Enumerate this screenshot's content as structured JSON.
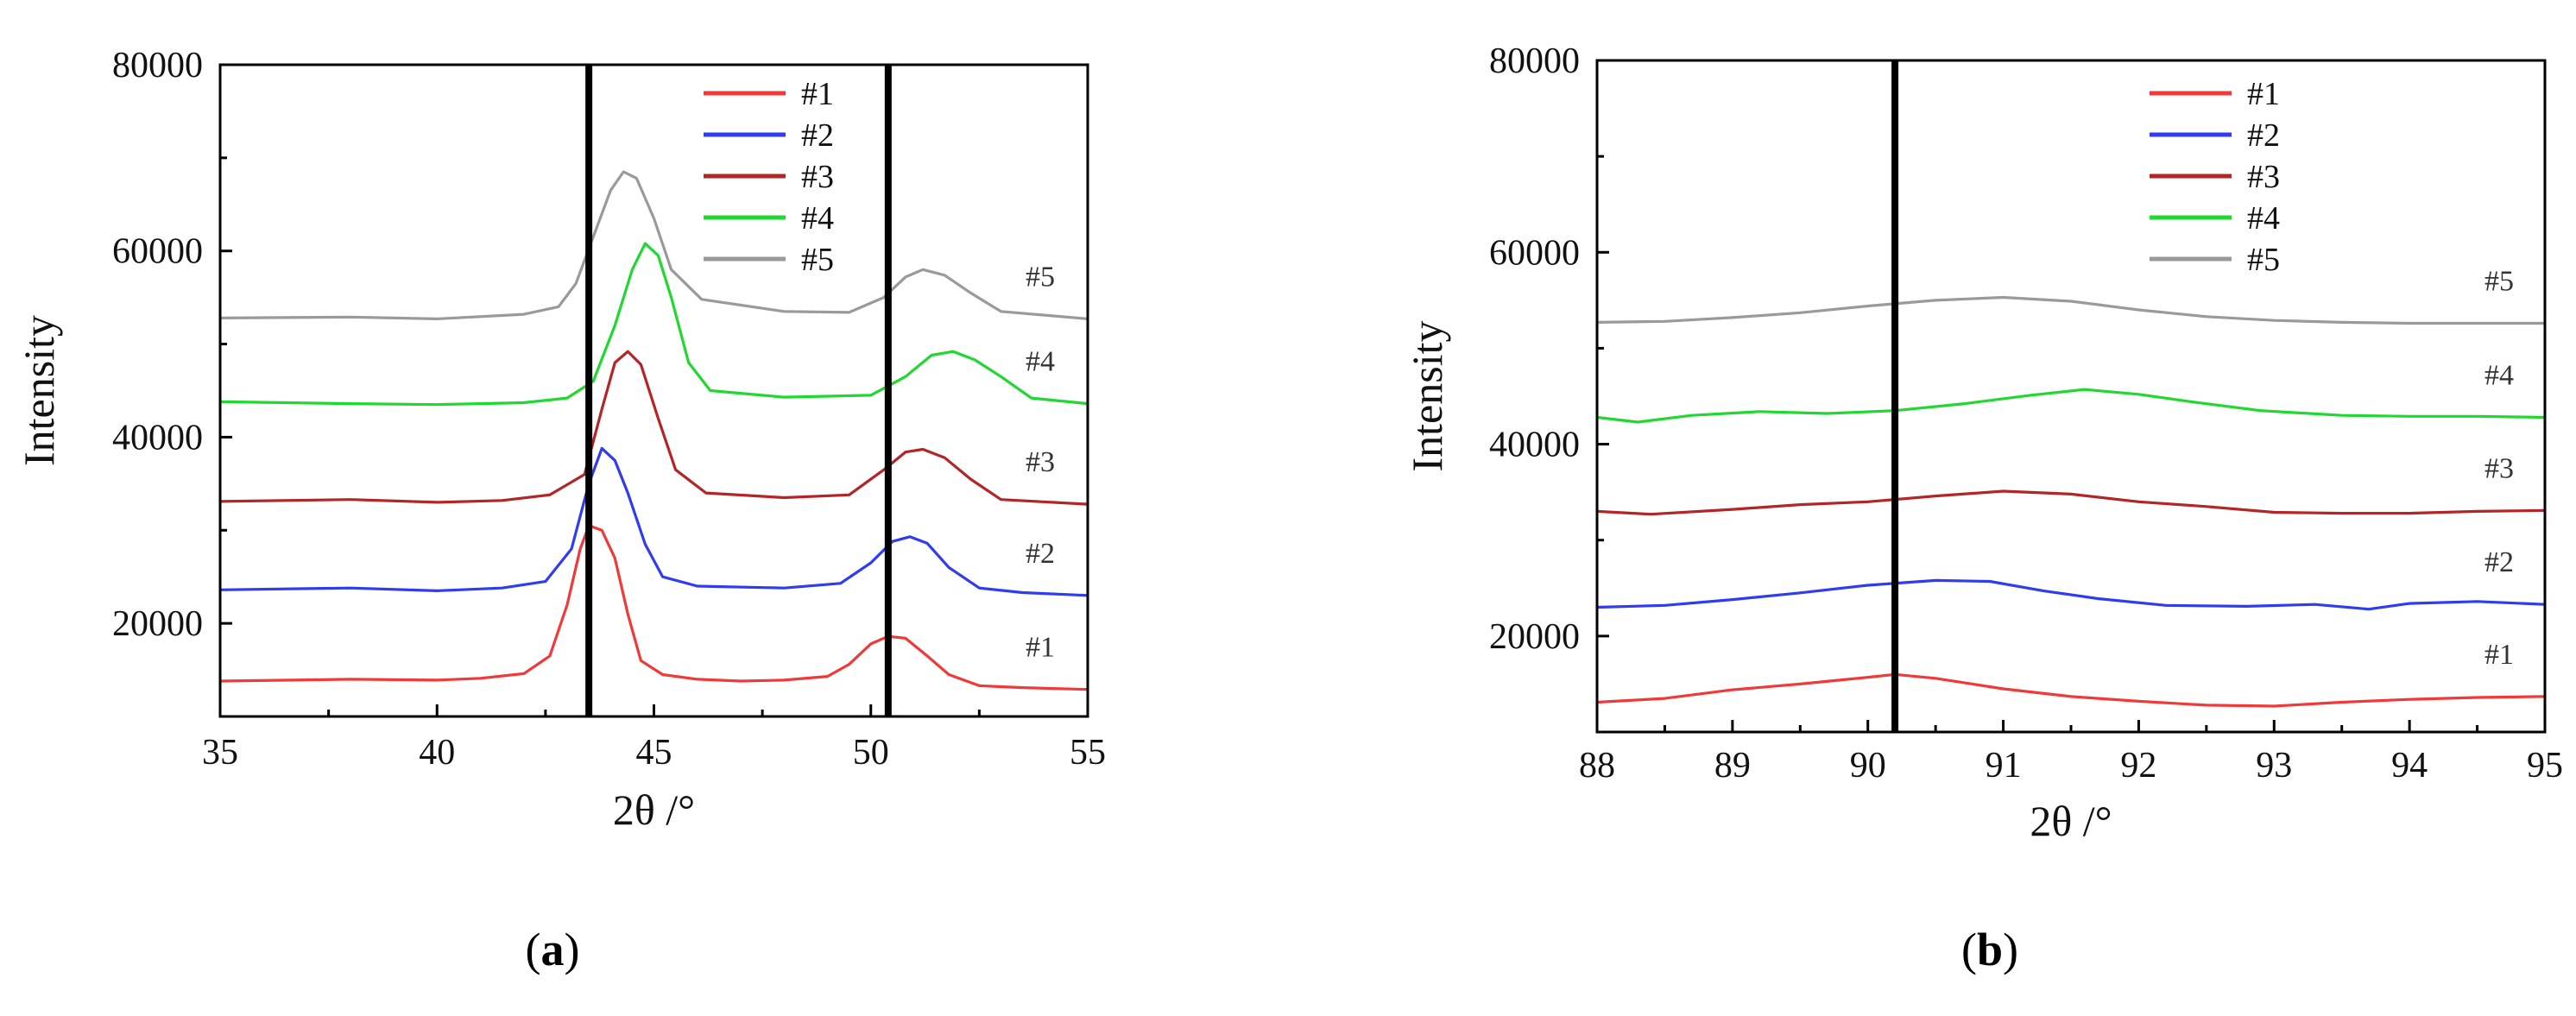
{
  "chart_data": [
    {
      "type": "line",
      "caption_letter": "a",
      "xlabel": "2θ /°",
      "ylabel": "Intensity",
      "xlim": [
        35,
        55
      ],
      "ylim": [
        10000,
        80000
      ],
      "xticks": [
        35,
        40,
        45,
        50,
        55
      ],
      "yticks": [
        20000,
        40000,
        60000,
        80000
      ],
      "ref_lines_x": [
        43.5,
        50.4
      ],
      "legend_position": "top-right",
      "series": [
        {
          "name": "#1",
          "color": "#f03a3a",
          "end_label": "#1",
          "points": [
            [
              35,
              13800
            ],
            [
              38,
              14000
            ],
            [
              40,
              13900
            ],
            [
              41,
              14100
            ],
            [
              42,
              14600
            ],
            [
              42.6,
              16500
            ],
            [
              43.0,
              22000
            ],
            [
              43.3,
              28000
            ],
            [
              43.5,
              30500
            ],
            [
              43.8,
              30000
            ],
            [
              44.1,
              27000
            ],
            [
              44.4,
              21000
            ],
            [
              44.7,
              16000
            ],
            [
              45.2,
              14500
            ],
            [
              46,
              14000
            ],
            [
              47,
              13800
            ],
            [
              48,
              13900
            ],
            [
              49,
              14300
            ],
            [
              49.5,
              15600
            ],
            [
              50.0,
              17800
            ],
            [
              50.4,
              18600
            ],
            [
              50.8,
              18400
            ],
            [
              51.3,
              16500
            ],
            [
              51.8,
              14500
            ],
            [
              52.5,
              13300
            ],
            [
              53.5,
              13100
            ],
            [
              55,
              12900
            ]
          ]
        },
        {
          "name": "#2",
          "color": "#2f3cf0",
          "end_label": "#2",
          "points": [
            [
              35,
              23600
            ],
            [
              38,
              23800
            ],
            [
              40,
              23500
            ],
            [
              41.5,
              23800
            ],
            [
              42.5,
              24500
            ],
            [
              43.1,
              28000
            ],
            [
              43.5,
              35000
            ],
            [
              43.8,
              38800
            ],
            [
              44.1,
              37500
            ],
            [
              44.4,
              34000
            ],
            [
              44.8,
              28500
            ],
            [
              45.2,
              25000
            ],
            [
              46,
              24000
            ],
            [
              48,
              23800
            ],
            [
              49.3,
              24300
            ],
            [
              50.0,
              26500
            ],
            [
              50.5,
              28800
            ],
            [
              50.9,
              29300
            ],
            [
              51.3,
              28600
            ],
            [
              51.8,
              26000
            ],
            [
              52.5,
              23800
            ],
            [
              53.5,
              23300
            ],
            [
              55,
              23000
            ]
          ]
        },
        {
          "name": "#3",
          "color": "#b32626",
          "end_label": "#3",
          "points": [
            [
              35,
              33100
            ],
            [
              38,
              33300
            ],
            [
              40,
              33000
            ],
            [
              41.5,
              33200
            ],
            [
              42.6,
              33800
            ],
            [
              43.4,
              36000
            ],
            [
              43.8,
              43000
            ],
            [
              44.1,
              48000
            ],
            [
              44.4,
              49200
            ],
            [
              44.7,
              47800
            ],
            [
              45.1,
              42000
            ],
            [
              45.5,
              36500
            ],
            [
              46.2,
              34000
            ],
            [
              48,
              33500
            ],
            [
              49.5,
              33800
            ],
            [
              50.3,
              36500
            ],
            [
              50.8,
              38400
            ],
            [
              51.2,
              38700
            ],
            [
              51.7,
              37800
            ],
            [
              52.3,
              35500
            ],
            [
              53,
              33300
            ],
            [
              55,
              32800
            ]
          ]
        },
        {
          "name": "#4",
          "color": "#20d830",
          "end_label": "#4",
          "points": [
            [
              35,
              43800
            ],
            [
              38,
              43600
            ],
            [
              40,
              43500
            ],
            [
              42,
              43700
            ],
            [
              43,
              44200
            ],
            [
              43.6,
              46000
            ],
            [
              44.1,
              52000
            ],
            [
              44.5,
              58000
            ],
            [
              44.8,
              60800
            ],
            [
              45.1,
              59500
            ],
            [
              45.4,
              55000
            ],
            [
              45.8,
              48000
            ],
            [
              46.3,
              45000
            ],
            [
              48,
              44300
            ],
            [
              50,
              44500
            ],
            [
              50.8,
              46500
            ],
            [
              51.4,
              48800
            ],
            [
              51.9,
              49200
            ],
            [
              52.4,
              48300
            ],
            [
              53,
              46500
            ],
            [
              53.7,
              44200
            ],
            [
              55,
              43600
            ]
          ]
        },
        {
          "name": "#5",
          "color": "#9a9a9a",
          "end_label": "#5",
          "points": [
            [
              35,
              52800
            ],
            [
              38,
              52900
            ],
            [
              40,
              52700
            ],
            [
              42,
              53200
            ],
            [
              42.8,
              54000
            ],
            [
              43.2,
              56500
            ],
            [
              43.6,
              61500
            ],
            [
              44.0,
              66500
            ],
            [
              44.3,
              68500
            ],
            [
              44.6,
              67800
            ],
            [
              45.0,
              63500
            ],
            [
              45.4,
              58000
            ],
            [
              46.1,
              54800
            ],
            [
              48,
              53500
            ],
            [
              49.5,
              53400
            ],
            [
              50.3,
              55000
            ],
            [
              50.8,
              57200
            ],
            [
              51.2,
              58000
            ],
            [
              51.7,
              57400
            ],
            [
              52.3,
              55500
            ],
            [
              53.0,
              53500
            ],
            [
              55,
              52700
            ]
          ]
        }
      ]
    },
    {
      "type": "line",
      "caption_letter": "b",
      "xlabel": "2θ /°",
      "ylabel": "Intensity",
      "xlim": [
        88,
        95
      ],
      "ylim": [
        10000,
        80000
      ],
      "xticks": [
        88,
        89,
        90,
        91,
        92,
        93,
        94,
        95
      ],
      "yticks": [
        20000,
        40000,
        60000,
        80000
      ],
      "ref_lines_x": [
        90.2
      ],
      "legend_position": "top-right",
      "series": [
        {
          "name": "#1",
          "color": "#f03a3a",
          "end_label": "#1",
          "points": [
            [
              88,
              13100
            ],
            [
              88.5,
              13500
            ],
            [
              89,
              14400
            ],
            [
              89.5,
              15000
            ],
            [
              90,
              15700
            ],
            [
              90.2,
              16000
            ],
            [
              90.5,
              15600
            ],
            [
              91,
              14500
            ],
            [
              91.5,
              13700
            ],
            [
              92,
              13200
            ],
            [
              92.5,
              12800
            ],
            [
              93,
              12700
            ],
            [
              93.5,
              13100
            ],
            [
              94,
              13400
            ],
            [
              94.5,
              13600
            ],
            [
              95,
              13700
            ]
          ]
        },
        {
          "name": "#2",
          "color": "#2f3cf0",
          "end_label": "#2",
          "points": [
            [
              88,
              23000
            ],
            [
              88.5,
              23200
            ],
            [
              89,
              23800
            ],
            [
              89.5,
              24500
            ],
            [
              90,
              25300
            ],
            [
              90.5,
              25800
            ],
            [
              90.9,
              25700
            ],
            [
              91.3,
              24700
            ],
            [
              91.7,
              23900
            ],
            [
              92.2,
              23200
            ],
            [
              92.8,
              23100
            ],
            [
              93.3,
              23300
            ],
            [
              93.7,
              22800
            ],
            [
              94,
              23400
            ],
            [
              94.5,
              23600
            ],
            [
              95,
              23300
            ]
          ]
        },
        {
          "name": "#3",
          "color": "#b32626",
          "end_label": "#3",
          "points": [
            [
              88,
              33000
            ],
            [
              88.4,
              32700
            ],
            [
              89,
              33200
            ],
            [
              89.5,
              33700
            ],
            [
              90,
              34000
            ],
            [
              90.5,
              34600
            ],
            [
              91,
              35100
            ],
            [
              91.5,
              34800
            ],
            [
              92,
              34000
            ],
            [
              92.5,
              33500
            ],
            [
              93,
              32900
            ],
            [
              93.5,
              32800
            ],
            [
              94,
              32800
            ],
            [
              94.5,
              33000
            ],
            [
              95,
              33100
            ]
          ]
        },
        {
          "name": "#4",
          "color": "#20d830",
          "end_label": "#4",
          "points": [
            [
              88,
              42800
            ],
            [
              88.3,
              42300
            ],
            [
              88.7,
              43000
            ],
            [
              89.2,
              43400
            ],
            [
              89.7,
              43200
            ],
            [
              90.2,
              43500
            ],
            [
              90.7,
              44200
            ],
            [
              91.2,
              45100
            ],
            [
              91.6,
              45700
            ],
            [
              92,
              45200
            ],
            [
              92.4,
              44400
            ],
            [
              92.9,
              43500
            ],
            [
              93.5,
              43000
            ],
            [
              94,
              42900
            ],
            [
              94.5,
              42900
            ],
            [
              95,
              42800
            ]
          ]
        },
        {
          "name": "#5",
          "color": "#9a9a9a",
          "end_label": "#5",
          "points": [
            [
              88,
              52700
            ],
            [
              88.5,
              52800
            ],
            [
              89,
              53200
            ],
            [
              89.5,
              53700
            ],
            [
              90,
              54400
            ],
            [
              90.5,
              55000
            ],
            [
              91,
              55300
            ],
            [
              91.5,
              54900
            ],
            [
              92,
              54000
            ],
            [
              92.5,
              53300
            ],
            [
              93,
              52900
            ],
            [
              93.5,
              52700
            ],
            [
              94,
              52600
            ],
            [
              94.5,
              52600
            ],
            [
              95,
              52600
            ]
          ]
        }
      ]
    }
  ]
}
